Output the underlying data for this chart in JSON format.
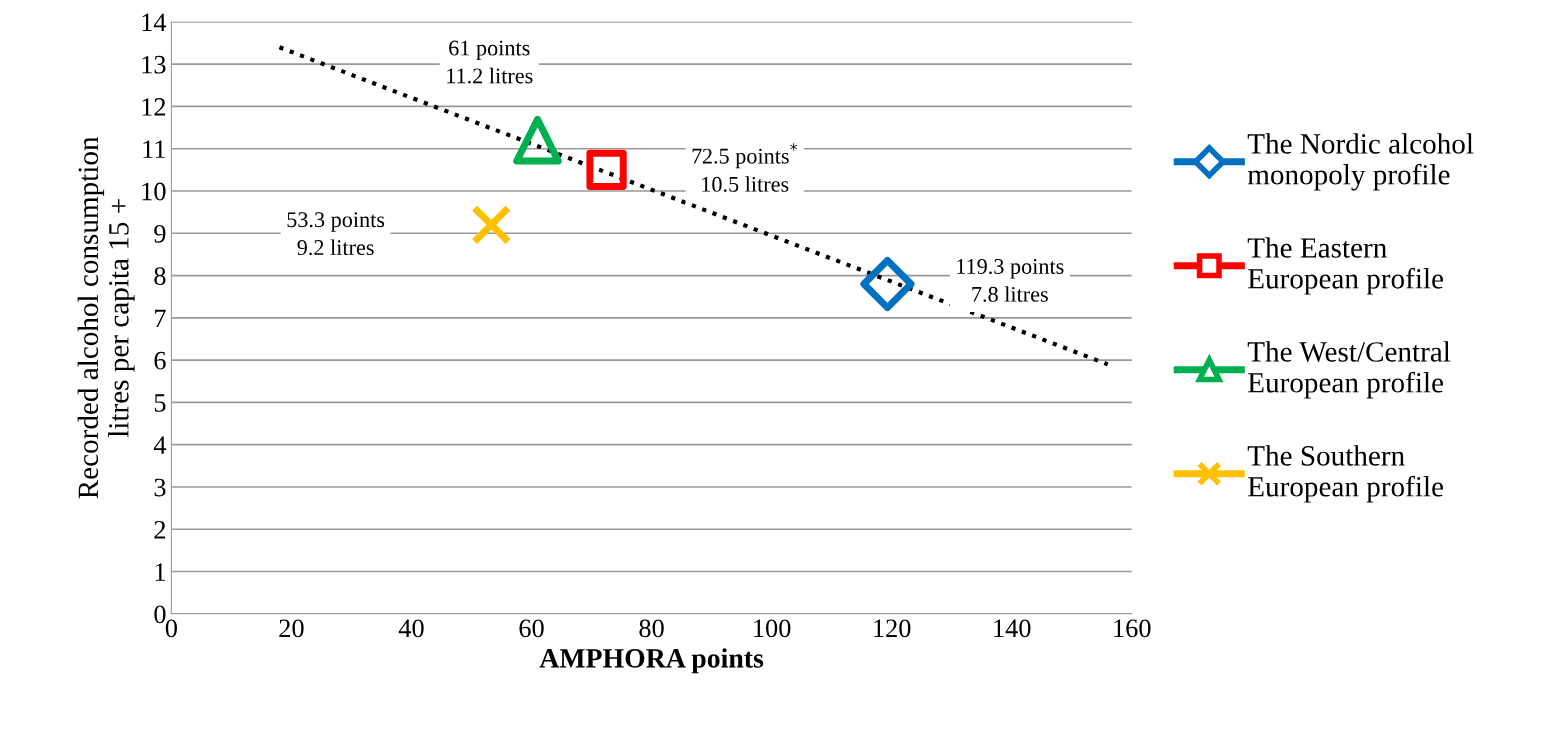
{
  "chart_data": {
    "type": "scatter",
    "xlabel": "AMPHORA points",
    "ylabel": "Recorded alcohol consumption\nlitres per capita 15 +",
    "xlim": [
      0,
      160
    ],
    "xticks": [
      0,
      20,
      40,
      60,
      80,
      100,
      120,
      140,
      160
    ],
    "ylim": [
      0,
      14
    ],
    "yticks": [
      0,
      1,
      2,
      3,
      4,
      5,
      6,
      7,
      8,
      9,
      10,
      11,
      12,
      13,
      14
    ],
    "grid": "y",
    "legend": "right",
    "series": [
      {
        "name": "The Nordic alcohol\nmonopoly profile",
        "color": "#0070c0",
        "x": [
          119.3
        ],
        "values": [
          7.8
        ],
        "marker": "diamond"
      },
      {
        "name": "The Eastern\nEuropean profile",
        "color": "#ff0000",
        "x": [
          72.5
        ],
        "values": [
          10.5
        ],
        "marker": "square"
      },
      {
        "name": "The West/Central\nEuropean profile",
        "color": "#00b050",
        "x": [
          61
        ],
        "values": [
          11.2
        ],
        "marker": "triangle"
      },
      {
        "name": "The Southern\nEuropean profile",
        "color": "#ffc000",
        "x": [
          53.3
        ],
        "values": [
          9.2
        ],
        "marker": "cross"
      },
      {
        "type": "line",
        "color": "#000000",
        "x": [
          18,
          156
        ],
        "values": [
          13.4,
          5.9
        ],
        "line_style": "dotted",
        "marker": "none"
      }
    ],
    "annotations": [
      "61 points\n11.2 litres",
      "72.5 points$^{*}$\n10.5 litres",
      "53.3 points\n9.2 litres",
      "119.3 points\n7.8 litres"
    ]
  }
}
